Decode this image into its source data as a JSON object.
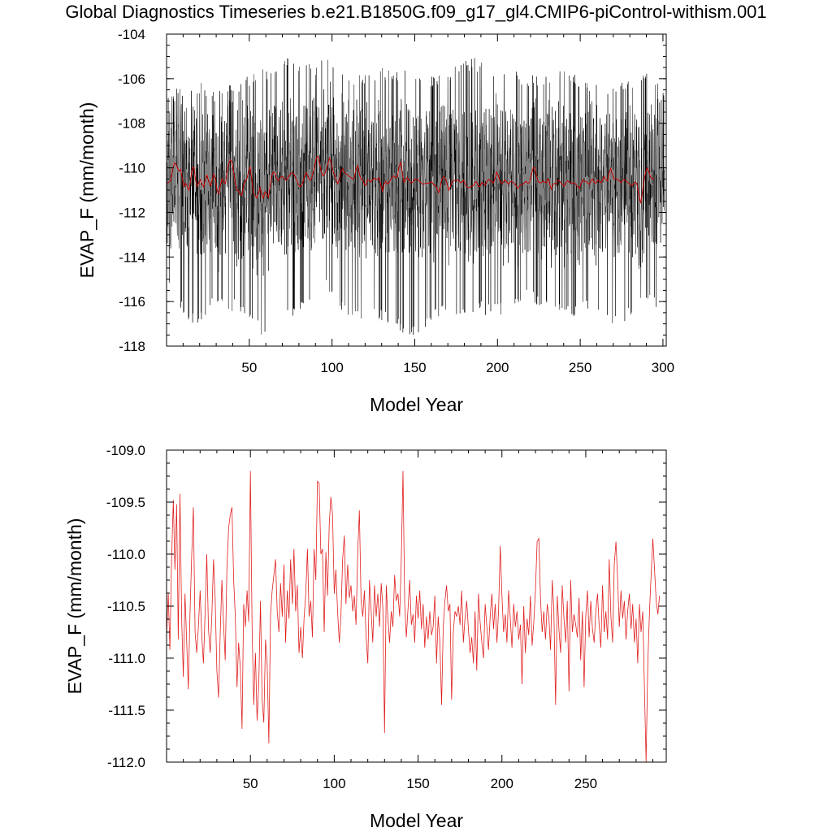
{
  "figure": {
    "title": "Global Diagnostics Timeseries b.e21.B1850G.f09_g17_gl4.CMIP6-piControl-withism.001"
  },
  "chart_data": [
    {
      "type": "line",
      "title": "",
      "xlabel": "Model Year",
      "ylabel": "EVAP_F (mm/month)",
      "xlim": [
        0,
        302
      ],
      "ylim": [
        -118,
        -104
      ],
      "x_ticks": [
        50,
        100,
        150,
        200,
        250,
        300
      ],
      "y_ticks": [
        -104,
        -106,
        -108,
        -110,
        -112,
        -114,
        -116,
        -118
      ],
      "x_tick_labels": [
        "50",
        "100",
        "150",
        "200",
        "250",
        "300"
      ],
      "y_tick_labels": [
        "-104",
        "-106",
        "-108",
        "-110",
        "-112",
        "-114",
        "-116",
        "-118"
      ],
      "grid": false,
      "series": [
        {
          "color": "#000000",
          "resolution": "monthly",
          "envelope": [
            {
              "x": 0,
              "max": -106.8,
              "min": -115.0
            },
            {
              "x": 15,
              "max": -106.0,
              "min": -117.2
            },
            {
              "x": 30,
              "max": -106.3,
              "min": -116.3
            },
            {
              "x": 45,
              "max": -106.0,
              "min": -116.5
            },
            {
              "x": 60,
              "max": -105.5,
              "min": -117.8
            },
            {
              "x": 72,
              "max": -104.9,
              "min": -116.8
            },
            {
              "x": 85,
              "max": -105.3,
              "min": -116.5
            },
            {
              "x": 96,
              "max": -104.8,
              "min": -115.5
            },
            {
              "x": 110,
              "max": -106.0,
              "min": -116.7
            },
            {
              "x": 125,
              "max": -105.5,
              "min": -116.8
            },
            {
              "x": 140,
              "max": -105.5,
              "min": -117.3
            },
            {
              "x": 150,
              "max": -105.8,
              "min": -117.7
            },
            {
              "x": 165,
              "max": -105.8,
              "min": -116.8
            },
            {
              "x": 185,
              "max": -105.0,
              "min": -116.5
            },
            {
              "x": 200,
              "max": -105.5,
              "min": -116.7
            },
            {
              "x": 220,
              "max": -105.8,
              "min": -116.0
            },
            {
              "x": 240,
              "max": -105.5,
              "min": -116.8
            },
            {
              "x": 255,
              "max": -106.0,
              "min": -116.5
            },
            {
              "x": 275,
              "max": -106.2,
              "min": -117.3
            },
            {
              "x": 290,
              "max": -105.6,
              "min": -116.0
            },
            {
              "x": 302,
              "max": -106.5,
              "min": -116.5
            }
          ]
        },
        {
          "color": "#cc0000",
          "resolution": "annual",
          "same_as_chart": 1
        }
      ]
    },
    {
      "type": "line",
      "title": "",
      "xlabel": "Model Year",
      "ylabel": "EVAP_F (mm/month)",
      "xlim": [
        0,
        298
      ],
      "ylim": [
        -112,
        -109
      ],
      "x_ticks": [
        50,
        100,
        150,
        200,
        250
      ],
      "y_ticks": [
        -109.0,
        -109.5,
        -110.0,
        -110.5,
        -111.0,
        -111.5,
        -112.0
      ],
      "x_tick_labels": [
        "50",
        "100",
        "150",
        "200",
        "250"
      ],
      "y_tick_labels": [
        "-109.0",
        "-109.5",
        "-110.0",
        "-110.5",
        "-111.0",
        "-111.5",
        "-112.0"
      ],
      "grid": false,
      "series": [
        {
          "color": "#e02020",
          "x_step": 1,
          "x_start": 0,
          "y": [
            -110.8,
            -110.38,
            -110.92,
            -110.05,
            -109.48,
            -110.15,
            -109.52,
            -110.82,
            -109.42,
            -110.62,
            -111.18,
            -110.38,
            -110.85,
            -111.3,
            -110.55,
            -110.0,
            -109.55,
            -110.75,
            -110.95,
            -110.7,
            -110.35,
            -110.78,
            -111.05,
            -110.55,
            -110.0,
            -110.72,
            -110.95,
            -110.6,
            -110.05,
            -110.42,
            -111.12,
            -111.38,
            -110.78,
            -110.25,
            -110.68,
            -111.02,
            -110.12,
            -109.75,
            -109.62,
            -109.55,
            -110.25,
            -110.6,
            -111.28,
            -110.85,
            -111.1,
            -111.68,
            -110.48,
            -110.7,
            -110.35,
            -110.65,
            -109.2,
            -110.72,
            -111.45,
            -110.95,
            -111.6,
            -111.25,
            -110.45,
            -111.4,
            -111.62,
            -110.82,
            -111.05,
            -111.82,
            -110.58,
            -110.35,
            -110.2,
            -110.05,
            -110.55,
            -110.75,
            -110.28,
            -110.6,
            -110.1,
            -110.85,
            -110.35,
            -110.62,
            -110.05,
            -110.48,
            -109.95,
            -110.55,
            -110.3,
            -110.95,
            -110.7,
            -111.0,
            -110.62,
            -110.38,
            -109.95,
            -110.6,
            -110.45,
            -110.8,
            -109.95,
            -110.25,
            -109.3,
            -109.32,
            -110.0,
            -109.95,
            -110.75,
            -109.98,
            -110.4,
            -109.72,
            -109.45,
            -109.62,
            -110.38,
            -110.15,
            -110.55,
            -110.85,
            -110.6,
            -110.05,
            -109.82,
            -110.48,
            -110.1,
            -110.42,
            -110.3,
            -110.55,
            -110.4,
            -110.68,
            -109.98,
            -109.58,
            -110.45,
            -110.6,
            -110.35,
            -110.8,
            -111.05,
            -110.25,
            -110.55,
            -110.85,
            -110.3,
            -110.6,
            -110.38,
            -110.7,
            -110.28,
            -110.52,
            -111.72,
            -110.3,
            -110.62,
            -110.85,
            -110.55,
            -110.7,
            -110.2,
            -110.45,
            -110.38,
            -110.6,
            -110.05,
            -109.2,
            -110.48,
            -110.8,
            -110.52,
            -110.25,
            -110.68,
            -110.58,
            -110.85,
            -110.4,
            -110.62,
            -110.35,
            -110.72,
            -110.48,
            -110.9,
            -110.6,
            -110.82,
            -110.55,
            -110.78,
            -110.7,
            -110.4,
            -111.05,
            -110.6,
            -110.85,
            -111.45,
            -110.7,
            -110.45,
            -110.3,
            -110.55,
            -110.48,
            -111.4,
            -110.75,
            -110.55,
            -110.6,
            -110.5,
            -110.68,
            -110.35,
            -110.85,
            -110.62,
            -110.45,
            -110.72,
            -110.95,
            -110.8,
            -111.05,
            -110.55,
            -111.12,
            -110.38,
            -110.65,
            -110.85,
            -111.0,
            -110.48,
            -110.7,
            -110.92,
            -110.6,
            -110.38,
            -110.72,
            -110.48,
            -110.85,
            -110.55,
            -109.92,
            -110.4,
            -110.75,
            -110.58,
            -110.85,
            -110.35,
            -110.62,
            -110.9,
            -110.48,
            -110.7,
            -110.55,
            -110.82,
            -110.68,
            -111.25,
            -110.5,
            -110.95,
            -110.62,
            -110.78,
            -110.4,
            -110.88,
            -110.65,
            -110.35,
            -109.88,
            -109.85,
            -110.42,
            -110.75,
            -110.55,
            -110.82,
            -110.48,
            -110.6,
            -110.92,
            -110.25,
            -110.55,
            -111.45,
            -110.4,
            -110.72,
            -110.95,
            -110.3,
            -110.62,
            -110.85,
            -110.45,
            -111.32,
            -110.25,
            -110.75,
            -110.58,
            -110.68,
            -110.8,
            -110.42,
            -111.02,
            -110.55,
            -111.28,
            -110.6,
            -110.35,
            -110.8,
            -110.45,
            -110.72,
            -110.85,
            -110.55,
            -110.38,
            -110.68,
            -110.9,
            -110.3,
            -110.75,
            -110.55,
            -110.82,
            -110.05,
            -110.6,
            -110.85,
            -110.1,
            -109.88,
            -110.25,
            -110.7,
            -110.35,
            -110.62,
            -110.45,
            -110.82,
            -110.55,
            -110.38,
            -110.72,
            -110.48,
            -110.85,
            -110.62,
            -111.05,
            -110.48,
            -110.75,
            -110.55,
            -111.3,
            -112.0,
            -111.05,
            -110.55,
            -110.2,
            -109.85,
            -110.15,
            -110.45,
            -110.58,
            -110.4
          ]
        }
      ]
    }
  ]
}
